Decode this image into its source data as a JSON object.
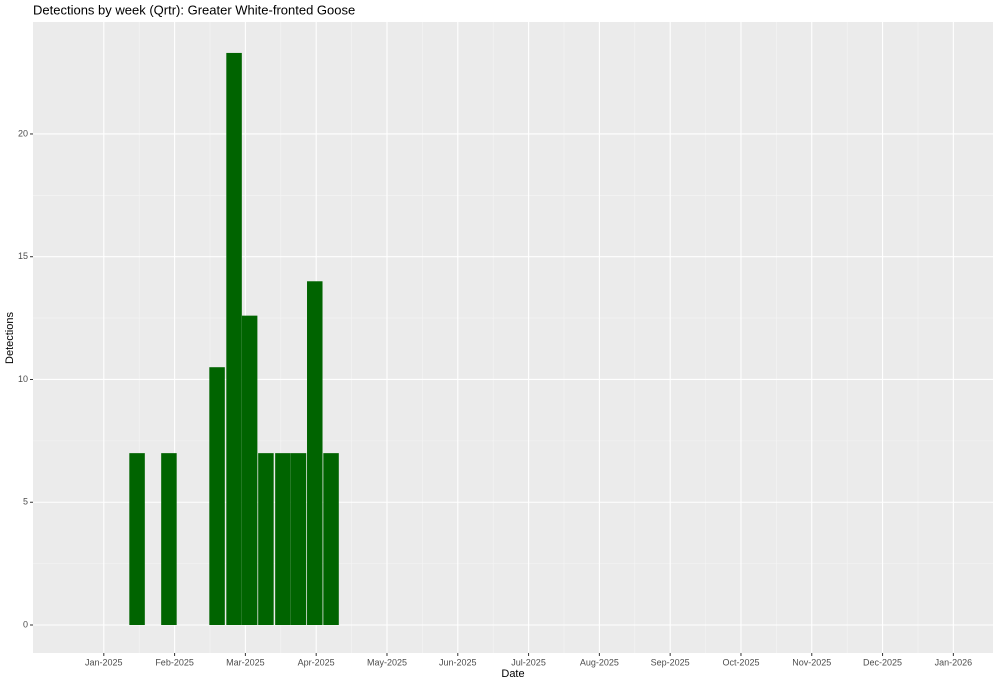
{
  "chart_data": {
    "type": "bar",
    "title": "Detections by week (Qrtr): Greater White-fronted Goose",
    "x_label": "Date",
    "y_label": "Detections",
    "x": [
      0.47,
      0.92,
      1.6,
      1.84,
      2.06,
      2.29,
      2.53,
      2.75,
      2.98,
      3.21
    ],
    "values": [
      7,
      7,
      10.5,
      23.3,
      12.6,
      7,
      7,
      7,
      14,
      7
    ],
    "color": "#006400",
    "xlim": [
      -1.0,
      12.56
    ],
    "xticks": [
      {
        "value": 0,
        "label": "Jan-2025"
      },
      {
        "value": 1,
        "label": "Feb-2025"
      },
      {
        "value": 2,
        "label": "Mar-2025"
      },
      {
        "value": 3,
        "label": "Apr-2025"
      },
      {
        "value": 4,
        "label": "May-2025"
      },
      {
        "value": 5,
        "label": "Jun-2025"
      },
      {
        "value": 6,
        "label": "Jul-2025"
      },
      {
        "value": 7,
        "label": "Aug-2025"
      },
      {
        "value": 8,
        "label": "Sep-2025"
      },
      {
        "value": 9,
        "label": "Oct-2025"
      },
      {
        "value": 10,
        "label": "Nov-2025"
      },
      {
        "value": 11,
        "label": "Dec-2025"
      },
      {
        "value": 12,
        "label": "Jan-2026"
      }
    ],
    "ylim": [
      -1.14,
      24.56
    ],
    "yticks": [
      0,
      5,
      10,
      15,
      20
    ],
    "grid": true
  }
}
